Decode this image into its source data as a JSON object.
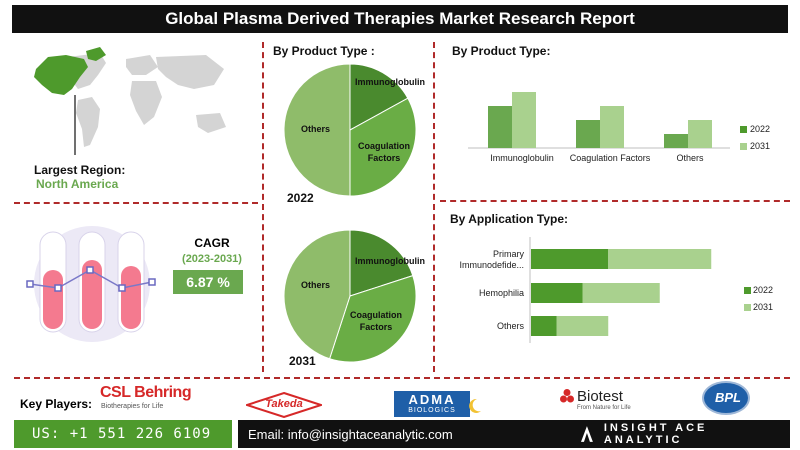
{
  "header": {
    "title": "Global Plasma Derived Therapies Market Research Report"
  },
  "region": {
    "label": "Largest Region:",
    "value": "North America"
  },
  "cagr": {
    "label": "CAGR",
    "period": "(2023-2031)",
    "value": "6.87 %"
  },
  "pie_section": {
    "title": "By Product Type :"
  },
  "bar_section": {
    "title": "By Product Type:"
  },
  "app_section": {
    "title": "By Application Type:"
  },
  "key_players": {
    "label": "Key Players:",
    "csl": {
      "name": "CSL Behring",
      "tagline": "Biotherapies for Life"
    },
    "takeda": "Takeda",
    "adma": {
      "name": "ADMA",
      "sub": "BIOLOGICS"
    },
    "biotest": {
      "name": "Biotest",
      "tagline": "From Nature for Life"
    },
    "bpl": "BPL"
  },
  "footer": {
    "phone": "US: +1 551 226 6109",
    "email": "Email: info@insightaceanalytic.com",
    "brand": "INSIGHT ACE ANALYTIC"
  },
  "colors": {
    "dark_green": "#4e9a2c",
    "mid_green": "#6aa84f",
    "light_green": "#a9d18e",
    "pie_base": "#8fbc6a",
    "pie_dark": "#4a8a2e",
    "pie_mid": "#6aad45",
    "accent_red": "#b02a2a"
  },
  "chart_data": [
    {
      "type": "pie",
      "year_label": "2022",
      "slices": [
        {
          "label": "Immunoglobulin",
          "value": 17
        },
        {
          "label": "Coagulation Factors",
          "value": 33
        },
        {
          "label": "Others",
          "value": 50
        }
      ]
    },
    {
      "type": "pie",
      "year_label": "2031",
      "slices": [
        {
          "label": "Immunoglobulin",
          "value": 20
        },
        {
          "label": "Coagulation Factors",
          "value": 35
        },
        {
          "label": "Others",
          "value": 45
        }
      ]
    },
    {
      "type": "bar",
      "categories": [
        "Immunoglobulin",
        "Coagulation Factors",
        "Others"
      ],
      "series": [
        {
          "name": "2022",
          "values": [
            3.0,
            2.0,
            1.0
          ]
        },
        {
          "name": "2031",
          "values": [
            4.0,
            3.0,
            2.0
          ]
        }
      ],
      "ylim": [
        0,
        5
      ],
      "legend": "right"
    },
    {
      "type": "bar",
      "orientation": "horizontal",
      "stacked": true,
      "categories": [
        "Primary Immunodefide...",
        "Hemophilia",
        "Others"
      ],
      "series": [
        {
          "name": "2022",
          "values": [
            3.0,
            2.0,
            1.0
          ]
        },
        {
          "name": "2031",
          "values": [
            4.0,
            3.0,
            2.0
          ]
        }
      ],
      "xlim": [
        0,
        8
      ],
      "legend": "right"
    }
  ]
}
